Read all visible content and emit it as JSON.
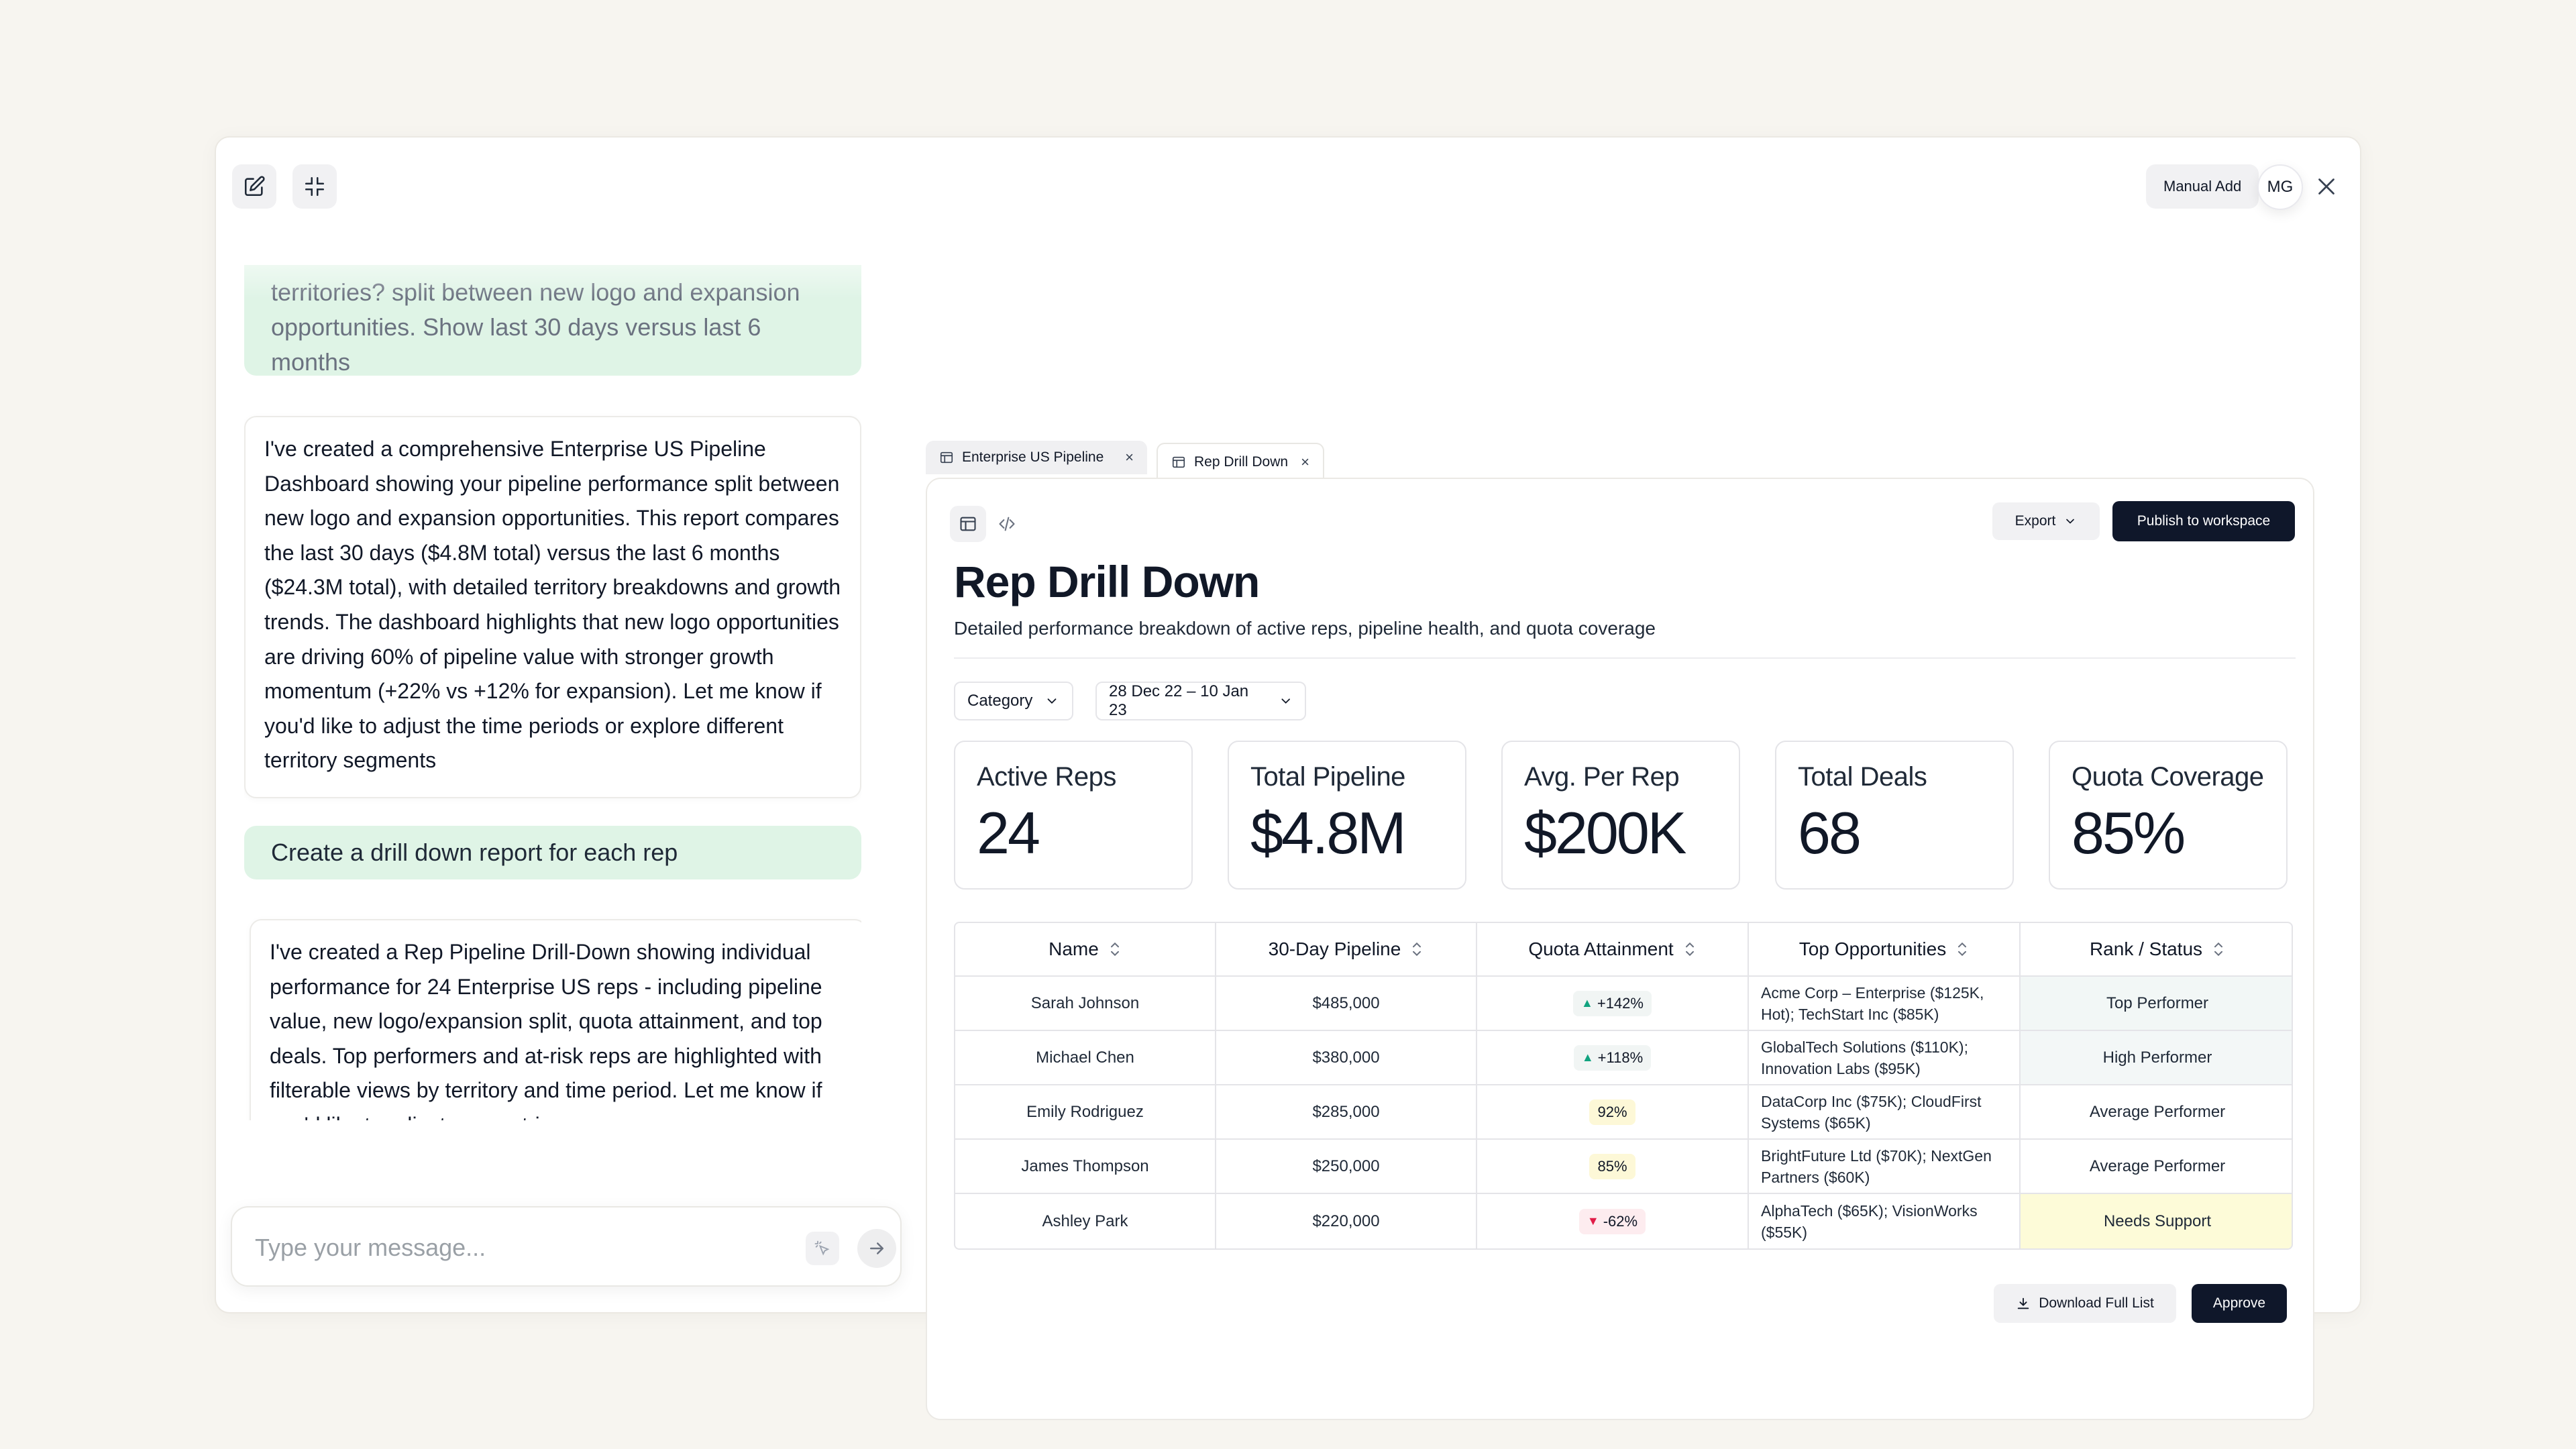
{
  "header": {
    "manual_add_label": "Manual Add",
    "avatar_initials": "MG"
  },
  "chat": {
    "user_message_1_partial": "territories? split between new logo and expansion",
    "user_message_1_tail": "opportunities. Show last 30 days versus last 6 months",
    "assistant_message_1": "I've created a comprehensive Enterprise US Pipeline Dashboard showing your pipeline performance split between new logo and expansion opportunities. This report compares the last 30 days ($4.8M total) versus the last 6 months ($24.3M total), with detailed territory breakdowns and growth trends. The dashboard highlights that new logo opportunities are driving 60% of pipeline value with stronger growth momentum (+22% vs +12% for expansion). Let me know if you'd like to adjust the time periods or explore different territory segments",
    "user_message_2": "Create a drill down report for each rep",
    "assistant_message_2": "I've created a Rep Pipeline Drill-Down showing individual performance for 24 Enterprise US reps - including pipeline value, new logo/expansion split, quota attainment, and top deals. Top performers and at-risk reps are highlighted with filterable views by territory and time period. Let me know if you'd like to adjust any metrics.",
    "composer_placeholder": "Type your message..."
  },
  "tabs": [
    {
      "label": "Enterprise US Pipeline",
      "close": "×"
    },
    {
      "label": "Rep Drill Down",
      "close": "×"
    }
  ],
  "report": {
    "export_label": "Export",
    "publish_label": "Publish to workspace",
    "title": "Rep Drill Down",
    "subtitle": "Detailed performance breakdown of active reps, pipeline health, and quota coverage",
    "filters": {
      "category": "Category",
      "date_range": "28 Dec 22 – 10 Jan 23"
    },
    "kpis": [
      {
        "label": "Active Reps",
        "value": "24"
      },
      {
        "label": "Total Pipeline",
        "value": "$4.8M"
      },
      {
        "label": "Avg. Per Rep",
        "value": "$200K"
      },
      {
        "label": "Total Deals",
        "value": "68"
      },
      {
        "label": "Quota Coverage",
        "value": "85%"
      }
    ],
    "table": {
      "columns": [
        "Name",
        "30-Day Pipeline",
        "Quota Attainment",
        "Top Opportunities",
        "Rank / Status"
      ],
      "rows": [
        {
          "name": "Sarah Johnson",
          "pipeline": "$485,000",
          "quota": "+142%",
          "opps": "Acme Corp – Enterprise ($125K, Hot); TechStart Inc ($85K)",
          "status": "Top Performer"
        },
        {
          "name": "Michael Chen",
          "pipeline": "$380,000",
          "quota": "+118%",
          "opps": "GlobalTech Solutions ($110K); Innovation Labs ($95K)",
          "status": "High Performer"
        },
        {
          "name": "Emily Rodriguez",
          "pipeline": "$285,000",
          "quota": "92%",
          "opps": "DataCorp Inc ($75K); CloudFirst Systems ($65K)",
          "status": "Average Performer"
        },
        {
          "name": "James Thompson",
          "pipeline": "$250,000",
          "quota": "85%",
          "opps": "BrightFuture Ltd ($70K); NextGen Partners ($60K)",
          "status": "Average Performer"
        },
        {
          "name": "Ashley Park",
          "pipeline": "$220,000",
          "quota": "-62%",
          "opps": "AlphaTech ($65K); VisionWorks ($55K)",
          "status": "Needs Support"
        }
      ]
    },
    "download_label": "Download Full List",
    "approve_label": "Approve"
  },
  "colors": {
    "background": "#f7f5f0",
    "user_bubble": "#dff4e6",
    "primary_button": "#0f172a",
    "trend_up": "#10a37f",
    "trend_down": "#e11d48",
    "needs_support": "#fdfbd8"
  },
  "icons": [
    "edit-icon",
    "collapse-icon",
    "close-icon",
    "table-icon",
    "code-icon",
    "chevron-down-icon",
    "sort-icon",
    "download-icon",
    "cursor-sparkle-icon",
    "arrow-right-icon"
  ]
}
